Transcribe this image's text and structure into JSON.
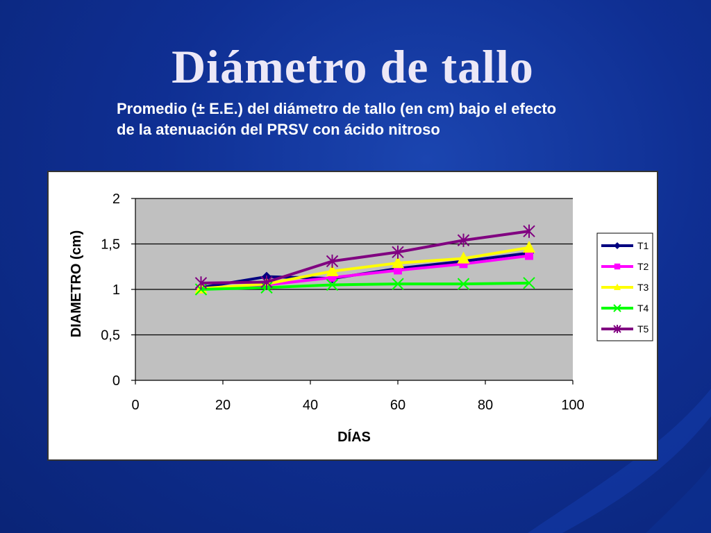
{
  "slide": {
    "title": "Diámetro de tallo",
    "subtitle_lines": [
      "Promedio (± E.E.) del diámetro de tallo (en cm) bajo el efecto",
      "de la atenuación del PRSV con ácido nitroso"
    ]
  },
  "chart_data": {
    "type": "line",
    "title": "",
    "xlabel": "DÍAS",
    "ylabel": "DIAMETRO (cm)",
    "xlim": [
      0,
      100
    ],
    "ylim": [
      0,
      2
    ],
    "x_ticks": [
      0,
      20,
      40,
      60,
      80,
      100
    ],
    "x_tick_labels": [
      "0",
      "20",
      "40",
      "60",
      "80",
      "100"
    ],
    "y_ticks": [
      0,
      0.5,
      1,
      1.5,
      2
    ],
    "y_tick_labels": [
      "0",
      "0,5",
      "1",
      "1,5",
      "2"
    ],
    "grid": "horizontal major",
    "plot_background": "#c0c0c0",
    "legend_position": "right",
    "x": [
      15,
      30,
      45,
      60,
      75,
      90
    ],
    "series": [
      {
        "name": "T1",
        "color": "#000080",
        "marker": "diamond",
        "values": [
          1.02,
          1.14,
          1.12,
          1.23,
          1.31,
          1.4
        ]
      },
      {
        "name": "T2",
        "color": "#ff00ff",
        "marker": "square",
        "values": [
          1.0,
          1.05,
          1.13,
          1.21,
          1.28,
          1.37
        ]
      },
      {
        "name": "T3",
        "color": "#ffff00",
        "marker": "triangle",
        "values": [
          1.01,
          1.06,
          1.2,
          1.29,
          1.34,
          1.46
        ]
      },
      {
        "name": "T4",
        "color": "#00ff00",
        "marker": "x",
        "values": [
          1.0,
          1.02,
          1.05,
          1.06,
          1.06,
          1.07
        ]
      },
      {
        "name": "T5",
        "color": "#800080",
        "marker": "star",
        "values": [
          1.07,
          1.08,
          1.31,
          1.41,
          1.54,
          1.64
        ]
      }
    ]
  }
}
